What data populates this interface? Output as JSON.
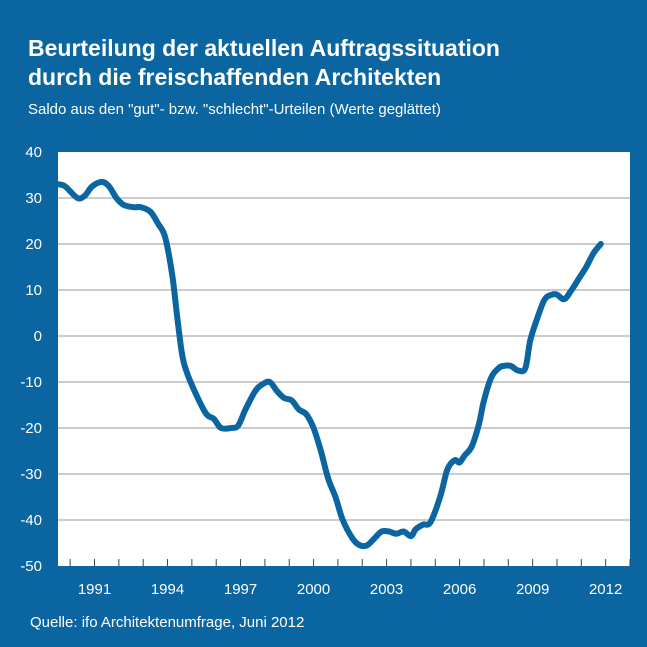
{
  "header": {
    "title_line1": "Beurteilung der aktuellen Auftragssituation",
    "title_line2": "durch die freischaffenden Architekten",
    "subtitle": "Saldo aus den \"gut\"- bzw. \"schlecht\"-Urteilen (Werte geglättet)"
  },
  "footer": {
    "source": "Quelle: ifo Architektenumfrage, Juni 2012"
  },
  "colors": {
    "background": "#0a65a0",
    "plot_background": "#ffffff",
    "line": "#0a65a0",
    "grid": "#9a9a9a"
  },
  "chart_data": {
    "type": "line",
    "title": "Beurteilung der aktuellen Auftragssituation durch die freischaffenden Architekten",
    "subtitle": "Saldo aus den \"gut\"- bzw. \"schlecht\"-Urteilen (Werte geglättet)",
    "xlabel": "",
    "ylabel": "",
    "xlim": [
      1989.5,
      2013
    ],
    "ylim": [
      -50,
      40
    ],
    "yticks": [
      40,
      30,
      20,
      10,
      0,
      -10,
      -20,
      -30,
      -40,
      -50
    ],
    "xticks": [
      1991,
      1994,
      1997,
      2000,
      2003,
      2006,
      2009,
      2012
    ],
    "grid": "horizontal",
    "series": [
      {
        "x": [
          1989.5,
          1989.8,
          1990.3,
          1990.6,
          1990.9,
          1991.3,
          1991.6,
          1991.9,
          1992.2,
          1992.6,
          1992.9,
          1993.3,
          1993.6,
          1993.9,
          1994.2,
          1994.4,
          1994.6,
          1994.8,
          1995.2,
          1995.6,
          1995.9,
          1996.2,
          1996.6,
          1996.9,
          1997.2,
          1997.6,
          1997.9,
          1998.2,
          1998.5,
          1998.8,
          1999.1,
          1999.4,
          1999.7,
          2000.0,
          2000.3,
          2000.6,
          2000.9,
          2001.2,
          2001.6,
          2001.9,
          2002.2,
          2002.5,
          2002.8,
          2003.1,
          2003.4,
          2003.7,
          2004.0,
          2004.2,
          2004.5,
          2004.8,
          2005.2,
          2005.5,
          2005.8,
          2006.0,
          2006.2,
          2006.5,
          2006.8,
          2007.0,
          2007.3,
          2007.6,
          2007.8,
          2008.1,
          2008.4,
          2008.7,
          2008.9,
          2009.2,
          2009.5,
          2009.8,
          2010.0,
          2010.3,
          2010.6,
          2010.9,
          2011.2,
          2011.5,
          2011.8
        ],
        "y": [
          33,
          32.5,
          30,
          30.5,
          32.5,
          33.5,
          32.5,
          30,
          28.5,
          28,
          28,
          27,
          24.5,
          21.5,
          13,
          4,
          -4,
          -8,
          -13,
          -17,
          -18,
          -20,
          -20,
          -19.5,
          -16,
          -12,
          -10.5,
          -10,
          -12,
          -13.5,
          -14,
          -16,
          -17,
          -20,
          -25,
          -31,
          -35,
          -40,
          -44,
          -45.5,
          -45.5,
          -44,
          -42.5,
          -42.5,
          -43,
          -42.5,
          -43.5,
          -42,
          -41,
          -40.5,
          -35,
          -29,
          -27,
          -27.5,
          -26,
          -24,
          -19,
          -14,
          -9,
          -7,
          -6.5,
          -6.5,
          -7.5,
          -7,
          -1,
          4,
          8,
          9,
          9,
          8,
          10,
          12.5,
          15,
          18,
          20
        ]
      }
    ]
  }
}
